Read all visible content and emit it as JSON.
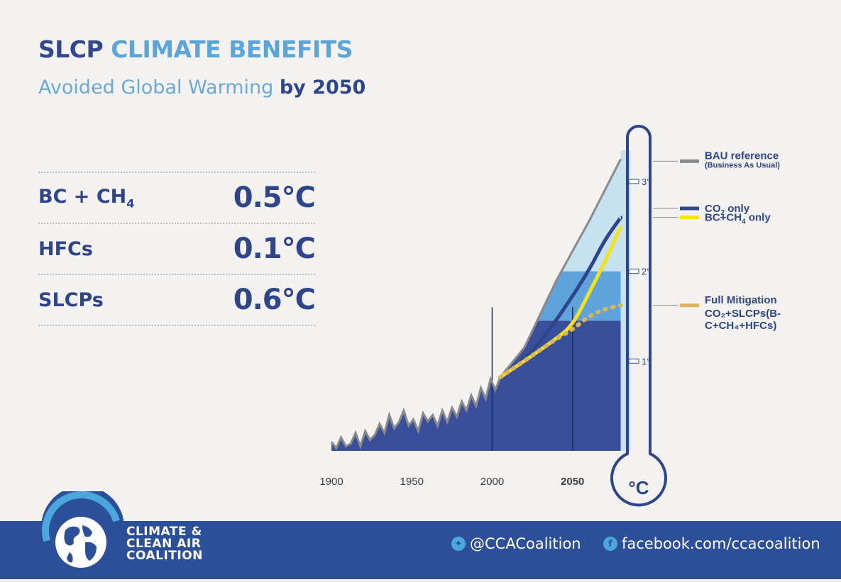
{
  "header": {
    "title_part1": "SLCP",
    "title_part2": "CLIMATE BENEFITS",
    "subtitle_part1": "Avoided Global Warming",
    "subtitle_part2": "by 2050"
  },
  "stats": [
    {
      "label": "BC + CH",
      "sub": "4",
      "value": "0.5°C"
    },
    {
      "label": "HFCs",
      "sub": "",
      "value": "0.1°C"
    },
    {
      "label": "SLCPs",
      "sub": "",
      "value": "0.6°C"
    }
  ],
  "footer": {
    "org_line1": "CLIMATE &",
    "org_line2": "CLEAN AIR",
    "org_line3": "COALITION",
    "twitter": "@CCACoalition",
    "facebook": "facebook.com/ccacoalition",
    "twitter_icon": "twitter-bird-icon",
    "facebook_icon": "facebook-f-icon"
  },
  "colors": {
    "navy": "#2f4589",
    "light_blue": "#5aa5d9",
    "footer_blue": "#2c4f9a",
    "band_dark": "#3a4f9b",
    "band_mid": "#5fa3dc",
    "band_light": "#c6e1f0",
    "bau": "#8a8a8a",
    "co2": "#2f4589",
    "bc_ch4": "#f5e21a",
    "full": "#d9b55a"
  },
  "chart_data": {
    "type": "line",
    "unit_label": "°C",
    "x_ticks": [
      "1900",
      "1950",
      "2000",
      "2050"
    ],
    "x_range": [
      1900,
      2085
    ],
    "y_ticks": [
      {
        "value": 1,
        "label": "1°"
      },
      {
        "value": 2,
        "label": "2°"
      },
      {
        "value": 3,
        "label": "3°"
      }
    ],
    "y_range": [
      0,
      3.3
    ],
    "avoided_bands": [
      {
        "from": 0,
        "to": 1.45,
        "color": "#3a4f9b"
      },
      {
        "from": 1.45,
        "to": 2.0,
        "color": "#5fa3dc"
      },
      {
        "from": 2.0,
        "to": 3.25,
        "color": "#c6e1f0"
      }
    ],
    "historical": {
      "x": [
        1900,
        1903,
        1906,
        1909,
        1912,
        1915,
        1918,
        1921,
        1924,
        1927,
        1930,
        1933,
        1936,
        1939,
        1942,
        1945,
        1948,
        1951,
        1954,
        1957,
        1960,
        1963,
        1966,
        1969,
        1972,
        1975,
        1978,
        1981,
        1984,
        1987,
        1990,
        1993,
        1996,
        1999,
        2002,
        2005
      ],
      "y": [
        0.1,
        0.03,
        0.15,
        0.05,
        0.08,
        0.2,
        0.05,
        0.22,
        0.12,
        0.18,
        0.3,
        0.2,
        0.4,
        0.25,
        0.32,
        0.45,
        0.28,
        0.35,
        0.22,
        0.42,
        0.33,
        0.4,
        0.28,
        0.45,
        0.32,
        0.48,
        0.38,
        0.55,
        0.45,
        0.62,
        0.5,
        0.7,
        0.58,
        0.8,
        0.68,
        0.82
      ]
    },
    "series": [
      {
        "name": "BAU reference",
        "note": "(Business As Usual)",
        "x": [
          2005,
          2020,
          2040,
          2060,
          2080
        ],
        "y": [
          0.82,
          1.15,
          1.9,
          2.55,
          3.25
        ]
      },
      {
        "name": "CO2 only",
        "x": [
          2005,
          2020,
          2040,
          2060,
          2070,
          2080
        ],
        "y": [
          0.82,
          1.0,
          1.45,
          2.0,
          2.35,
          2.6
        ]
      },
      {
        "name": "BC+CH4 only",
        "x": [
          2005,
          2020,
          2040,
          2050,
          2060,
          2070,
          2080
        ],
        "y": [
          0.82,
          1.0,
          1.25,
          1.4,
          1.75,
          2.1,
          2.5
        ]
      },
      {
        "name": "Full Mitigation",
        "note": "CO2+SLCPs(BC+CH4+HFCs)",
        "x": [
          2005,
          2020,
          2040,
          2050,
          2060,
          2070,
          2080
        ],
        "y": [
          0.82,
          1.0,
          1.25,
          1.35,
          1.5,
          1.58,
          1.62
        ]
      }
    ]
  },
  "legend": [
    {
      "text": "BAU reference",
      "sub": "",
      "tail": "",
      "note": "(Business As Usual)"
    },
    {
      "text": "CO",
      "sub": "2",
      "tail": " only",
      "note": ""
    },
    {
      "text": "BC+CH",
      "sub": "4",
      "tail": " only",
      "note": ""
    },
    {
      "text": "Full Mitigation",
      "sub": "",
      "tail": "",
      "note": "CO₂+SLCPs(B-C+CH₄+HFCs)"
    }
  ]
}
